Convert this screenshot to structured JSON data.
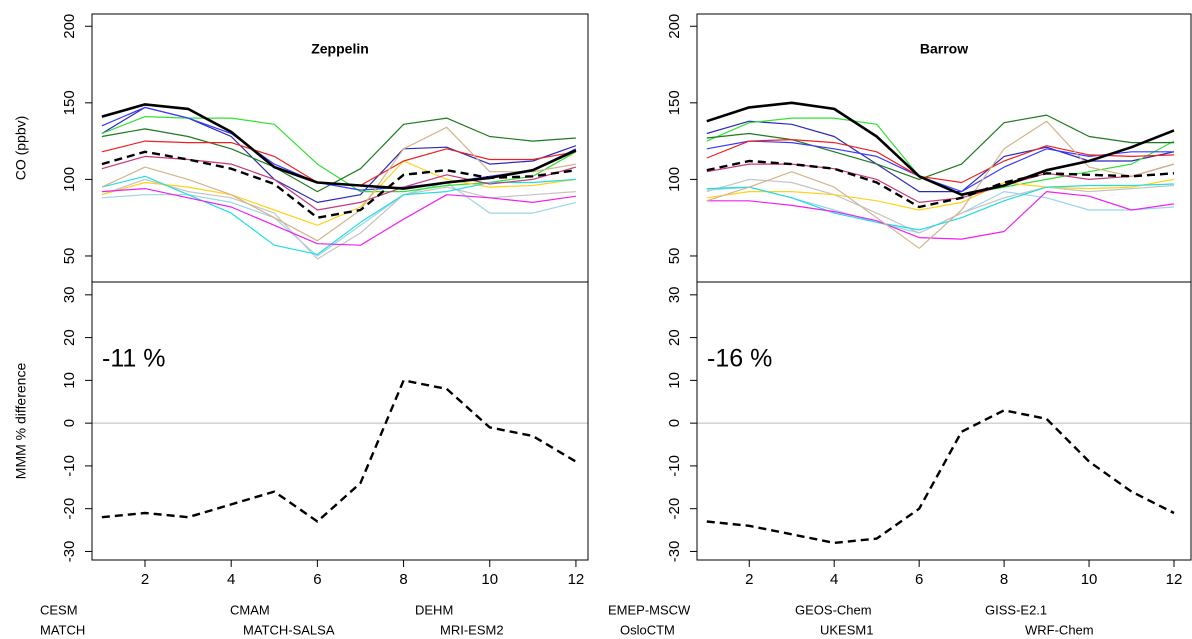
{
  "chart_data": [
    {
      "type": "line",
      "title": "Zeppelin",
      "ylabel": "CO (ppbv)",
      "x": [
        1,
        2,
        3,
        4,
        5,
        6,
        7,
        8,
        9,
        10,
        11,
        12
      ],
      "xlim": [
        0.77,
        12.28
      ],
      "ylim": [
        33,
        208
      ],
      "yticks": [
        50,
        100,
        150,
        200
      ],
      "series": [
        {
          "name": "CESM",
          "color": "#9ad6e6",
          "values": [
            88,
            90,
            90,
            85,
            75,
            50,
            70,
            90,
            98,
            78,
            78,
            85
          ]
        },
        {
          "name": "CMAM",
          "color": "#c4c4c4",
          "values": [
            90,
            100,
            92,
            88,
            78,
            48,
            65,
            90,
            95,
            88,
            90,
            92
          ]
        },
        {
          "name": "DEHM",
          "color": "#2a2ab8",
          "values": [
            130,
            147,
            140,
            128,
            100,
            85,
            90,
            120,
            121,
            110,
            112,
            122
          ]
        },
        {
          "name": "EMEP-MSCW",
          "color": "#33e033",
          "values": [
            130,
            141,
            140,
            140,
            136,
            110,
            92,
            92,
            96,
            98,
            102,
            118
          ]
        },
        {
          "name": "GEOS-Chem",
          "color": "#ffd21a",
          "values": [
            90,
            98,
            95,
            90,
            80,
            70,
            82,
            112,
            100,
            95,
            96,
            100
          ]
        },
        {
          "name": "GISS-E2.1",
          "color": "#22dde0",
          "values": [
            95,
            102,
            90,
            78,
            57,
            51,
            72,
            90,
            92,
            98,
            98,
            100
          ]
        },
        {
          "name": "MATCH",
          "color": "#1e7a1e",
          "values": [
            128,
            133,
            128,
            120,
            108,
            92,
            107,
            136,
            140,
            128,
            125,
            127
          ]
        },
        {
          "name": "MATCH-SALSA",
          "color": "#3a3aff",
          "values": [
            135,
            147,
            140,
            130,
            110,
            98,
            93,
            95,
            98,
            102,
            106,
            120
          ]
        },
        {
          "name": "MRI-ESM2",
          "color": "#ee2222",
          "values": [
            118,
            125,
            124,
            124,
            115,
            98,
            96,
            112,
            120,
            113,
            113,
            118
          ]
        },
        {
          "name": "OsloCTM",
          "color": "#c8387a",
          "values": [
            107,
            115,
            113,
            110,
            100,
            80,
            85,
            95,
            103,
            97,
            100,
            108
          ]
        },
        {
          "name": "UKESM1",
          "color": "#ee22ee",
          "values": [
            92,
            94,
            88,
            82,
            70,
            58,
            57,
            74,
            90,
            88,
            85,
            89
          ]
        },
        {
          "name": "WRF-Chem",
          "color": "#d4b48c",
          "values": [
            95,
            108,
            100,
            90,
            75,
            60,
            80,
            120,
            134,
            105,
            105,
            110
          ]
        },
        {
          "color": "#000000",
          "linestyle": "bold",
          "values": [
            141,
            149,
            146,
            131,
            108,
            98,
            96,
            94,
            98,
            101,
            106,
            119
          ]
        },
        {
          "color": "#000000",
          "linestyle": "dashed",
          "values": [
            110,
            118,
            113,
            107,
            97,
            75,
            80,
            103,
            106,
            101,
            102,
            106
          ]
        }
      ]
    },
    {
      "type": "line",
      "ylabel": "MMM % difference",
      "annotation": "-11 %",
      "refline": 0,
      "x": [
        1,
        2,
        3,
        4,
        5,
        6,
        7,
        8,
        9,
        10,
        11,
        12
      ],
      "xlim": [
        0.77,
        12.28
      ],
      "xticks": [
        2,
        4,
        6,
        8,
        10,
        12
      ],
      "ylim": [
        -32,
        33
      ],
      "yticks": [
        -30,
        -20,
        -10,
        0,
        10,
        20,
        30
      ],
      "series": [
        {
          "color": "#000000",
          "linestyle": "dashed",
          "values": [
            -22,
            -21,
            -22,
            -19,
            -16,
            -23,
            -14,
            10,
            8,
            -1,
            -3,
            -9
          ]
        }
      ]
    },
    {
      "type": "line",
      "title": "Barrow",
      "x": [
        1,
        2,
        3,
        4,
        5,
        6,
        7,
        8,
        9,
        10,
        11,
        12
      ],
      "xlim": [
        0.77,
        12.4
      ],
      "ylim": [
        33,
        208
      ],
      "yticks": [
        50,
        100,
        150,
        200
      ],
      "series": [
        {
          "color": "#9ad6e6",
          "values": [
            93,
            95,
            88,
            80,
            72,
            65,
            78,
            92,
            88,
            80,
            80,
            82
          ]
        },
        {
          "color": "#c4c4c4",
          "values": [
            92,
            100,
            98,
            90,
            78,
            65,
            78,
            88,
            95,
            92,
            94,
            96
          ]
        },
        {
          "color": "#2a2ab8",
          "values": [
            130,
            138,
            136,
            128,
            110,
            92,
            92,
            115,
            121,
            112,
            112,
            118
          ]
        },
        {
          "color": "#33e033",
          "values": [
            125,
            137,
            140,
            140,
            136,
            102,
            90,
            95,
            100,
            105,
            110,
            125
          ]
        },
        {
          "color": "#ffd21a",
          "values": [
            88,
            92,
            92,
            90,
            86,
            80,
            85,
            98,
            95,
            94,
            95,
            100
          ]
        },
        {
          "color": "#22dde0",
          "values": [
            94,
            95,
            88,
            78,
            72,
            67,
            75,
            86,
            95,
            96,
            96,
            97
          ]
        },
        {
          "color": "#1e7a1e",
          "values": [
            127,
            130,
            126,
            118,
            110,
            100,
            110,
            137,
            142,
            128,
            124,
            124
          ]
        },
        {
          "color": "#3a3aff",
          "values": [
            120,
            125,
            124,
            120,
            115,
            102,
            92,
            108,
            120,
            115,
            118,
            118
          ]
        },
        {
          "color": "#ee2222",
          "values": [
            114,
            125,
            126,
            124,
            118,
            102,
            98,
            112,
            122,
            116,
            115,
            116
          ]
        },
        {
          "color": "#c8387a",
          "values": [
            105,
            110,
            110,
            107,
            100,
            85,
            88,
            96,
            104,
            100,
            102,
            110
          ]
        },
        {
          "color": "#ee22ee",
          "values": [
            86,
            86,
            83,
            79,
            73,
            62,
            61,
            66,
            92,
            89,
            80,
            84
          ]
        },
        {
          "color": "#d4b48c",
          "values": [
            86,
            95,
            105,
            95,
            75,
            55,
            80,
            120,
            138,
            108,
            102,
            110
          ]
        },
        {
          "color": "#000000",
          "linestyle": "bold",
          "values": [
            138,
            147,
            150,
            146,
            128,
            102,
            90,
            96,
            106,
            112,
            121,
            132
          ]
        },
        {
          "color": "#000000",
          "linestyle": "dashed",
          "values": [
            106,
            112,
            110,
            107,
            98,
            82,
            88,
            98,
            104,
            103,
            102,
            104
          ]
        }
      ]
    },
    {
      "type": "line",
      "annotation": "-16 %",
      "refline": 0,
      "x": [
        1,
        2,
        3,
        4,
        5,
        6,
        7,
        8,
        9,
        10,
        11,
        12
      ],
      "xlim": [
        0.77,
        12.4
      ],
      "xticks": [
        2,
        4,
        6,
        8,
        10,
        12
      ],
      "ylim": [
        -32,
        33
      ],
      "yticks": [
        -30,
        -20,
        -10,
        0,
        10,
        20,
        30
      ],
      "series": [
        {
          "color": "#000000",
          "linestyle": "dashed",
          "values": [
            -23,
            -24,
            -26,
            -28,
            -27,
            -20,
            -2,
            3,
            1,
            -9,
            -16,
            -21
          ]
        }
      ]
    }
  ]
}
